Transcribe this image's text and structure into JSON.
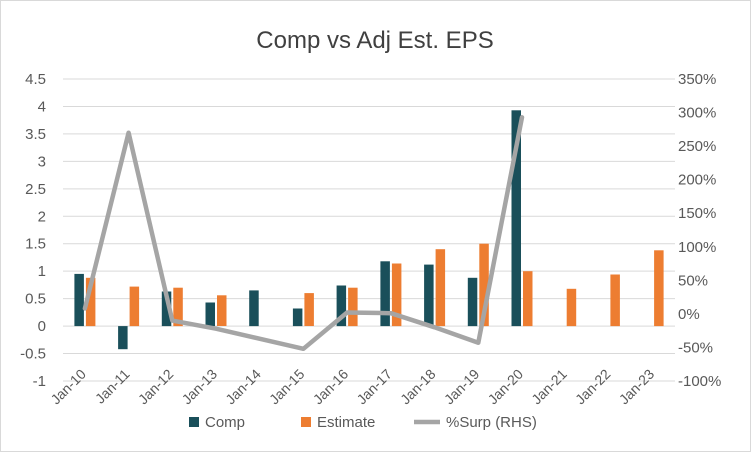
{
  "chart_data": {
    "type": "bar",
    "title": "Comp vs Adj Est. EPS",
    "categories": [
      "Jan-10",
      "Jan-11",
      "Jan-12",
      "Jan-13",
      "Jan-14",
      "Jan-15",
      "Jan-16",
      "Jan-17",
      "Jan-18",
      "Jan-19",
      "Jan-20",
      "Jan-21",
      "Jan-22",
      "Jan-23"
    ],
    "y_ticks": [
      "-1",
      "-0.5",
      "0",
      "0.5",
      "1",
      "1.5",
      "2",
      "2.5",
      "3",
      "3.5",
      "4",
      "4.5"
    ],
    "y2_ticks": [
      "-100%",
      "-50%",
      "0%",
      "50%",
      "100%",
      "150%",
      "200%",
      "250%",
      "300%",
      "350%"
    ],
    "ylim": [
      -1,
      4.5
    ],
    "y2lim": [
      -100,
      350
    ],
    "grid": true,
    "legend_position": "bottom",
    "series": [
      {
        "name": "Comp",
        "type": "bar",
        "axis": "left",
        "color": "#1a4f5a",
        "values": [
          0.95,
          -0.42,
          0.63,
          0.43,
          0.65,
          0.32,
          0.74,
          1.18,
          1.12,
          0.88,
          3.93,
          null,
          null,
          null
        ]
      },
      {
        "name": "Estimate",
        "type": "bar",
        "axis": "left",
        "color": "#ed7d31",
        "values": [
          0.88,
          0.72,
          0.7,
          0.56,
          null,
          0.6,
          0.7,
          1.14,
          1.4,
          1.5,
          1.0,
          0.68,
          0.94,
          1.38
        ]
      },
      {
        "name": "%Surp (RHS)",
        "type": "line",
        "axis": "right",
        "color": "#a5a5a5",
        "values": [
          8,
          270,
          -10,
          -22,
          null,
          -52,
          2,
          1,
          -20,
          -43,
          293,
          null,
          null,
          null
        ]
      }
    ]
  }
}
